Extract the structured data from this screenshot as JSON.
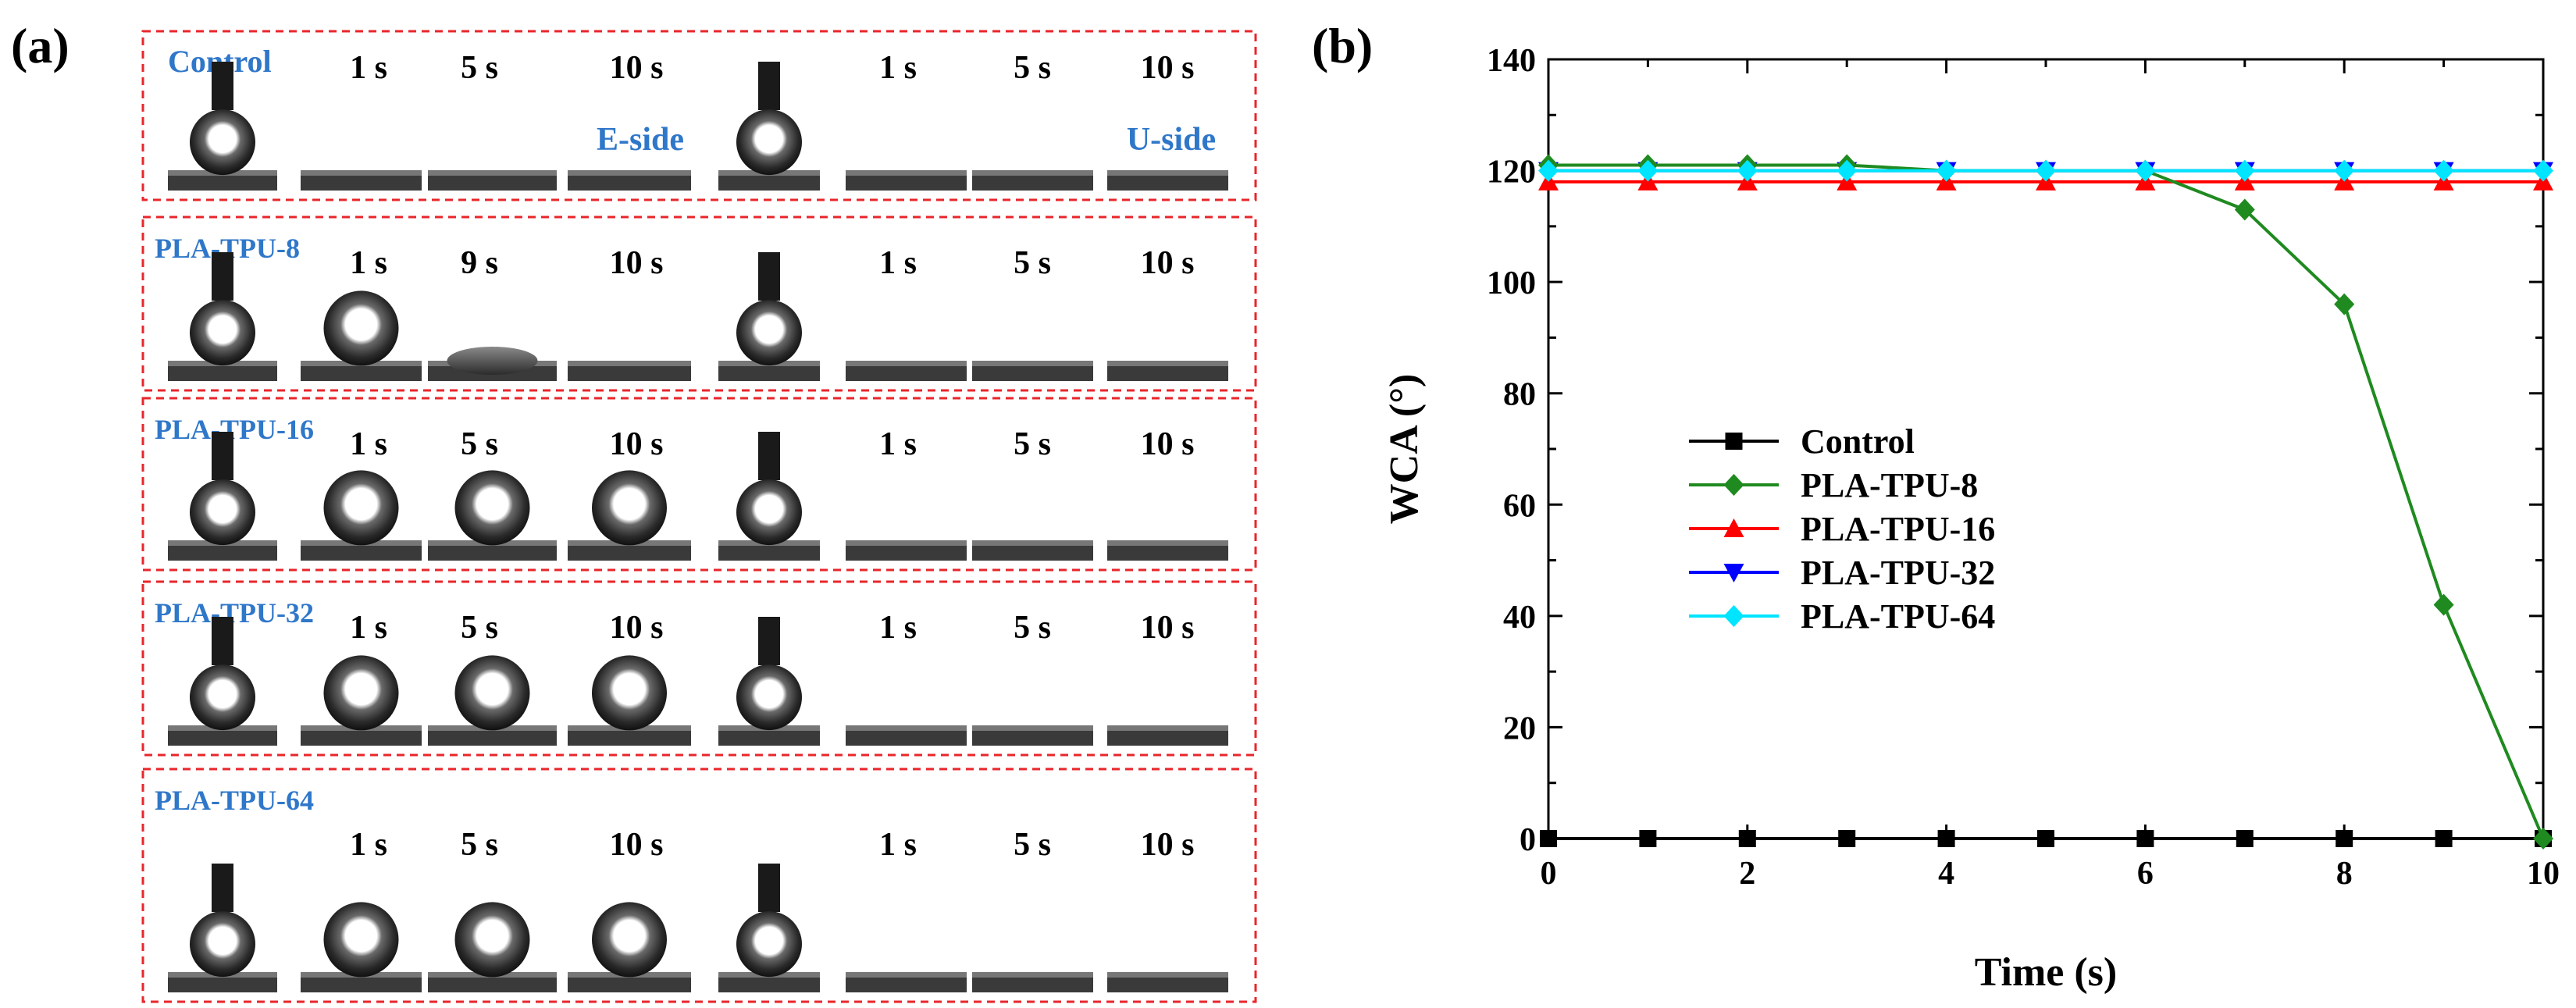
{
  "panel_a": {
    "label": "(a)",
    "left_side_label": "E-side",
    "right_side_label": "U-side",
    "rows": [
      {
        "sample": "Control",
        "left_times": [
          "1 s",
          "5 s",
          "10 s"
        ],
        "right_times": [
          "1 s",
          "5 s",
          "10 s"
        ],
        "left_states": [
          "drop",
          "flat",
          "flat",
          "flat"
        ],
        "right_states": [
          "drop",
          "flat",
          "flat",
          "flat"
        ]
      },
      {
        "sample": "PLA-TPU-8",
        "left_times": [
          "1 s",
          "9 s",
          "10 s"
        ],
        "right_times": [
          "1 s",
          "5 s",
          "10 s"
        ],
        "left_states": [
          "drop",
          "drop",
          "spread",
          "flat"
        ],
        "right_states": [
          "drop",
          "flat",
          "flat",
          "flat"
        ]
      },
      {
        "sample": "PLA-TPU-16",
        "left_times": [
          "1 s",
          "5 s",
          "10 s"
        ],
        "right_times": [
          "1 s",
          "5 s",
          "10 s"
        ],
        "left_states": [
          "drop",
          "drop",
          "drop",
          "drop"
        ],
        "right_states": [
          "drop",
          "flat",
          "flat",
          "flat"
        ]
      },
      {
        "sample": "PLA-TPU-32",
        "left_times": [
          "1 s",
          "5 s",
          "10 s"
        ],
        "right_times": [
          "1 s",
          "5 s",
          "10 s"
        ],
        "left_states": [
          "drop",
          "drop",
          "drop",
          "drop"
        ],
        "right_states": [
          "drop",
          "flat",
          "flat",
          "flat"
        ]
      },
      {
        "sample": "PLA-TPU-64",
        "left_times": [
          "1 s",
          "5 s",
          "10 s"
        ],
        "right_times": [
          "1 s",
          "5 s",
          "10 s"
        ],
        "left_states": [
          "drop",
          "drop",
          "drop",
          "drop"
        ],
        "right_states": [
          "drop",
          "flat",
          "flat",
          "flat"
        ]
      }
    ]
  },
  "panel_b": {
    "label": "(b)"
  },
  "colors": {
    "frame": "#e8262b",
    "label_blue": "#2f77c9",
    "control": "#000000",
    "pla_tpu_8": "#1f8a1f",
    "pla_tpu_16": "#ff0000",
    "pla_tpu_32": "#0000ff",
    "pla_tpu_64": "#00e5ff"
  },
  "chart_data": {
    "type": "line",
    "title": "",
    "xlabel": "Time (s)",
    "ylabel": "WCA (°)",
    "xlim": [
      0,
      10
    ],
    "ylim": [
      0,
      140
    ],
    "xticks": [
      0,
      2,
      4,
      6,
      8,
      10
    ],
    "yticks": [
      0,
      20,
      40,
      60,
      80,
      100,
      120,
      140
    ],
    "legend_position": "center-left",
    "x": [
      0,
      1,
      2,
      3,
      4,
      5,
      6,
      7,
      8,
      9,
      10
    ],
    "series": [
      {
        "name": "Control",
        "marker": "square",
        "color": "#000000",
        "values": [
          0,
          0,
          0,
          0,
          0,
          0,
          0,
          0,
          0,
          0,
          0
        ]
      },
      {
        "name": "PLA-TPU-8",
        "marker": "diamond",
        "color": "#1f8a1f",
        "values": [
          121,
          121,
          121,
          121,
          120,
          120,
          120,
          113,
          96,
          42,
          0
        ]
      },
      {
        "name": "PLA-TPU-16",
        "marker": "triangle-up",
        "color": "#ff0000",
        "values": [
          118,
          118,
          118,
          118,
          118,
          118,
          118,
          118,
          118,
          118,
          118
        ]
      },
      {
        "name": "PLA-TPU-32",
        "marker": "triangle-down",
        "color": "#0000ff",
        "values": [
          120,
          120,
          120,
          120,
          120,
          120,
          120,
          120,
          120,
          120,
          120
        ]
      },
      {
        "name": "PLA-TPU-64",
        "marker": "diamond",
        "color": "#00e5ff",
        "values": [
          120,
          120,
          120,
          120,
          120,
          120,
          120,
          120,
          120,
          120,
          120
        ]
      }
    ]
  }
}
